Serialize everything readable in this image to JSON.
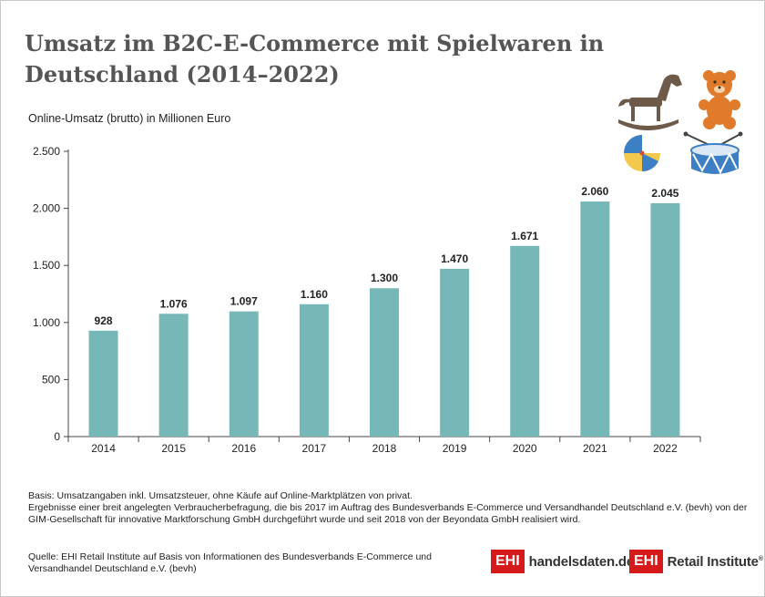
{
  "header": {
    "title": "Umsatz im B2C-E-Commerce mit Spielwaren in Deutschland (2014–2022)"
  },
  "chart_data": {
    "type": "bar",
    "title": "Umsatz im B2C-E-Commerce mit Spielwaren in Deutschland (2014–2022)",
    "ylabel": "Online-Umsatz (brutto) in Millionen Euro",
    "xlabel": "",
    "categories": [
      "2014",
      "2015",
      "2016",
      "2017",
      "2018",
      "2019",
      "2020",
      "2021",
      "2022"
    ],
    "values": [
      928,
      1076,
      1097,
      1160,
      1300,
      1470,
      1671,
      2060,
      2045
    ],
    "value_labels": [
      "928",
      "1.076",
      "1.097",
      "1.160",
      "1.300",
      "1.470",
      "1.671",
      "2.060",
      "2.045"
    ],
    "ylim": [
      0,
      2500
    ],
    "yticks": [
      0,
      500,
      1000,
      1500,
      2000,
      2500
    ],
    "ytick_labels": [
      "0",
      "500",
      "1.000",
      "1.500",
      "2.000",
      "2.500"
    ],
    "grid": false,
    "legend": "none",
    "bar_color": "#76b8b7"
  },
  "footer": {
    "note_1": "Basis: Umsatzangaben inkl. Umsatzsteuer, ohne Käufe auf Online-Marktplätzen von privat.",
    "note_2": "Ergebnisse einer breit angelegten Verbraucherbefragung, die bis 2017 im Auftrag des Bundesverbands E-Commerce und Versandhandel Deutschland e.V. (bevh) von der GIM-Gesellschaft für innovative Marktforschung GmbH durchgeführt wurde und seit 2018 von der Beyondata GmbH realisiert wird.",
    "source": "Quelle: EHI Retail Institute auf Basis von Informationen des Bundesverbands E-Commerce und Versandhandel Deutschland e.V. (bevh)"
  },
  "logos": {
    "logo1_box": "EHI",
    "logo1_text": "handelsdaten.de",
    "logo2_box": "EHI",
    "logo2_text": "Retail Institute",
    "logo2_mark": "®"
  },
  "icons": [
    "rocking-horse-icon",
    "teddy-bear-icon",
    "beach-ball-icon",
    "drum-icon"
  ],
  "colors": {
    "bar": "#76b8b7",
    "title": "#555555",
    "brand_red": "#d41a1a",
    "icon_brown": "#6e5a48",
    "icon_orange": "#e07b2c",
    "icon_blue": "#3d7fc4",
    "icon_yellow": "#f2c94c"
  }
}
